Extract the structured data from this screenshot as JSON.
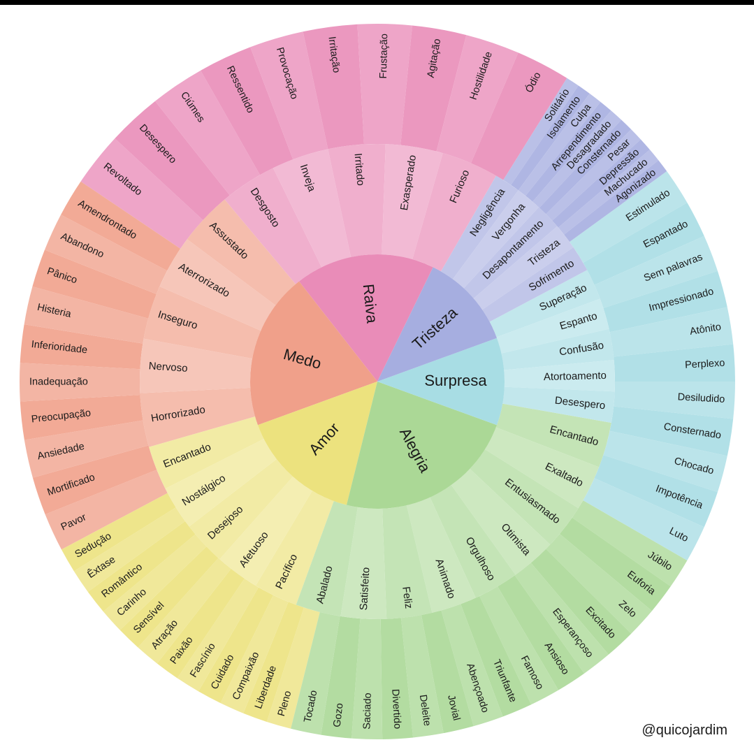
{
  "credit": "@quicojardim",
  "wheel": [
    {
      "core": "Raiva",
      "color": "#e98cb8",
      "middle": [
        "Desgosto",
        "Inveja",
        "Irritado",
        "Exasperado",
        "Furioso"
      ],
      "outer": [
        "Revoltado",
        "Desespero",
        "Ciúmes",
        "Ressentido",
        "Provocação",
        "Irritação",
        "Frustação",
        "Agitação",
        "Hostilidade",
        "Ódio"
      ]
    },
    {
      "core": "Medo",
      "color": "#f0a08a",
      "middle": [
        "Horrorizado",
        "Nervoso",
        "Inseguro",
        "Aterrorizado",
        "Assustado"
      ],
      "outer": [
        "Pavor",
        "Mortificado",
        "Ansiedade",
        "Preocupação",
        "Inadequação",
        "Inferioridade",
        "Histeria",
        "Pânico",
        "Abandono",
        "Amendrontado"
      ]
    },
    {
      "core": "Amor",
      "color": "#ece27e",
      "middle": [
        "Pacífico",
        "Afetuoso",
        "Desejoso",
        "Nostálgico",
        "Encantado"
      ],
      "outer": [
        "Pleno",
        "Liberdade",
        "Compaixão",
        "Cuidado",
        "Fascínio",
        "Paixão",
        "Atração",
        "Sensível",
        "Carinho",
        "Romântico",
        "Êxtase",
        "Sedução"
      ]
    },
    {
      "core": "Alegria",
      "color": "#abd896",
      "middle": [
        "Encantado",
        "Exaltado",
        "Entusiasmado",
        "Otimista",
        "Orgulhoso",
        "Animado",
        "Feliz",
        "Satisfeito",
        "Abalado"
      ],
      "outer": [
        "Júbilo",
        "Euforia",
        "Zelo",
        "Excitado",
        "Esperançoso",
        "Ansioso",
        "Famoso",
        "Triunfante",
        "Abençoado",
        "Jovial",
        "Deleite",
        "Divertido",
        "Saciado",
        "Gozo",
        "Tocado"
      ]
    },
    {
      "core": "Surpresa",
      "color": "#a8dde4",
      "middle": [
        "Superação",
        "Espanto",
        "Confusão",
        "Atortoamento",
        "Desespero"
      ],
      "outer": [
        "Estimulado",
        "Espantado",
        "Sem palavras",
        "Impressionado",
        "Atônito",
        "Perplexo",
        "Desiludido",
        "Consternado",
        "Chocado",
        "Impotência",
        "Luto"
      ]
    },
    {
      "core": "Tristeza",
      "color": "#a6aee0",
      "middle": [
        "Negligência",
        "Vergonha",
        "Desapontamento",
        "Tristeza",
        "Sofrimento"
      ],
      "outer": [
        "Solitário",
        "Isolamento",
        "Culpa",
        "Arrependimento",
        "Desagradado",
        "Consternado",
        "Pesar",
        "Depressão",
        "Machucado",
        "Agonizado"
      ]
    }
  ]
}
